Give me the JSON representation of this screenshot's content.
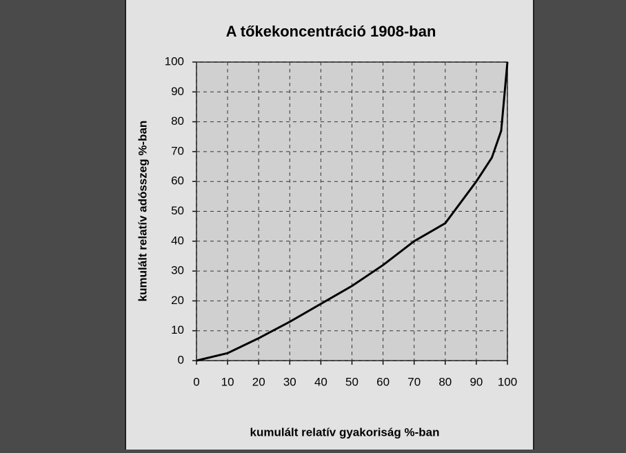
{
  "chart_data": {
    "type": "line",
    "title": "A tőkekoncentráció 1908-ban",
    "xlabel": "kumulált relatív gyakoriság %-ban",
    "ylabel": "kumulált relatív adósszeg %-ban",
    "x": [
      0,
      10,
      20,
      30,
      40,
      50,
      60,
      70,
      80,
      90,
      95,
      98,
      100
    ],
    "series": [
      {
        "name": "tőkekoncentráció",
        "color": "#000000",
        "values": [
          0,
          2.5,
          7.5,
          13,
          19,
          25,
          32,
          40,
          46,
          60,
          68,
          77,
          100
        ]
      }
    ],
    "xlim": [
      0,
      100
    ],
    "xticks": [
      0,
      10,
      20,
      30,
      40,
      50,
      60,
      70,
      80,
      90,
      100
    ],
    "ylim": [
      0,
      100
    ],
    "yticks": [
      0,
      10,
      20,
      30,
      40,
      50,
      60,
      70,
      80,
      90,
      100
    ],
    "grid": true
  }
}
